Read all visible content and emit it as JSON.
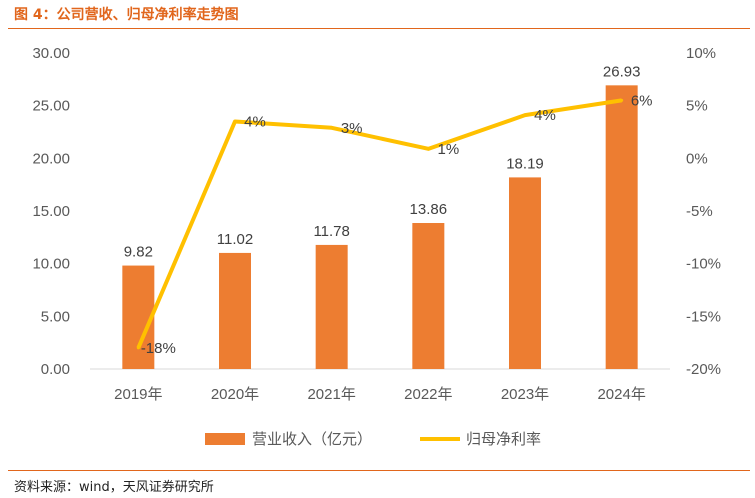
{
  "figure_title": "图 4：公司营收、归母净利率走势图",
  "source_note": "资料来源：wind，天风证券研究所",
  "colors": {
    "accent": "#e1661c",
    "bar": "#ed7d31",
    "line": "#ffc000",
    "axis_text": "#595959",
    "label_text": "#404040"
  },
  "chart_data": {
    "type": "bar",
    "categories": [
      "2019年",
      "2020年",
      "2021年",
      "2022年",
      "2023年",
      "2024年"
    ],
    "series": [
      {
        "name": "营业收入（亿元）",
        "type": "bar",
        "axis": "left",
        "values": [
          9.82,
          11.02,
          11.78,
          13.86,
          18.19,
          26.93
        ],
        "labels": [
          "9.82",
          "11.02",
          "11.78",
          "13.86",
          "18.19",
          "26.93"
        ]
      },
      {
        "name": "归母净利率",
        "type": "line",
        "axis": "right",
        "values": [
          -18,
          3.5,
          2.9,
          0.9,
          4.1,
          5.5
        ],
        "labels": [
          "-18%",
          "4%",
          "3%",
          "1%",
          "4%",
          "6%"
        ]
      }
    ],
    "y_left": {
      "min": 0,
      "max": 30,
      "ticks": [
        "0.00",
        "5.00",
        "10.00",
        "15.00",
        "20.00",
        "25.00",
        "30.00"
      ]
    },
    "y_right": {
      "min": -20,
      "max": 10,
      "ticks": [
        "-20%",
        "-15%",
        "-10%",
        "-5%",
        "0%",
        "5%",
        "10%"
      ]
    },
    "grid": false,
    "legend_position": "bottom"
  }
}
